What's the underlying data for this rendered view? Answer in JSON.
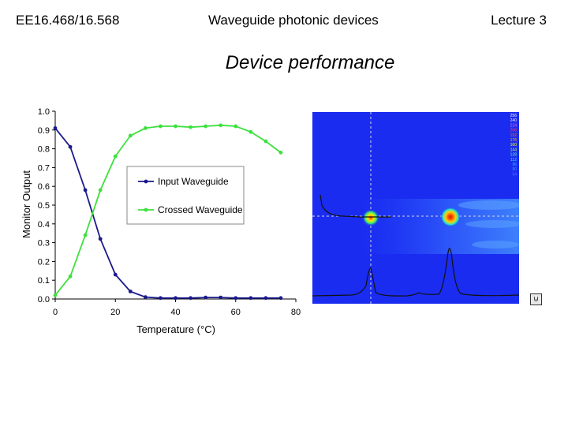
{
  "header": {
    "course": "EE16.468/16.568",
    "topic": "Waveguide photonic devices",
    "lecture": "Lecture 3"
  },
  "slide": {
    "title": "Device performance"
  },
  "chart_data": {
    "type": "line",
    "title": "",
    "xlabel": "Temperature (°C)",
    "ylabel": "Monitor Output",
    "xlim": [
      0,
      80
    ],
    "ylim": [
      0.0,
      1.0
    ],
    "x_ticks": [
      "0",
      "20",
      "40",
      "60",
      "80"
    ],
    "y_ticks": [
      "0.0",
      "0.1",
      "0.2",
      "0.3",
      "0.4",
      "0.5",
      "0.6",
      "0.7",
      "0.8",
      "0.9",
      "1.0"
    ],
    "grid": false,
    "legend_position": "center-right",
    "x": [
      0,
      5,
      10,
      15,
      20,
      25,
      30,
      35,
      40,
      45,
      50,
      55,
      60,
      65,
      70,
      75
    ],
    "series": [
      {
        "name": "Input Waveguide",
        "color": "#1a1a8c",
        "values": [
          0.91,
          0.81,
          0.58,
          0.32,
          0.13,
          0.04,
          0.01,
          0.005,
          0.005,
          0.005,
          0.008,
          0.008,
          0.005,
          0.005,
          0.005,
          0.005
        ]
      },
      {
        "name": "Crossed Waveguide",
        "color": "#3ce13c",
        "values": [
          0.02,
          0.12,
          0.34,
          0.58,
          0.76,
          0.87,
          0.91,
          0.92,
          0.92,
          0.915,
          0.92,
          0.925,
          0.92,
          0.89,
          0.84,
          0.78
        ]
      }
    ]
  },
  "mode_image": {
    "description_icon": "scale-toggle-icon",
    "colorbar_labels": [
      "256",
      "240",
      "224",
      "208",
      "192",
      "176",
      "160",
      "144",
      "128",
      "112",
      "96",
      "80",
      "64"
    ],
    "colors": {
      "background": "#1a2cf0",
      "spot": "#ff3c00",
      "crosshair": "#d8d8d8"
    }
  }
}
